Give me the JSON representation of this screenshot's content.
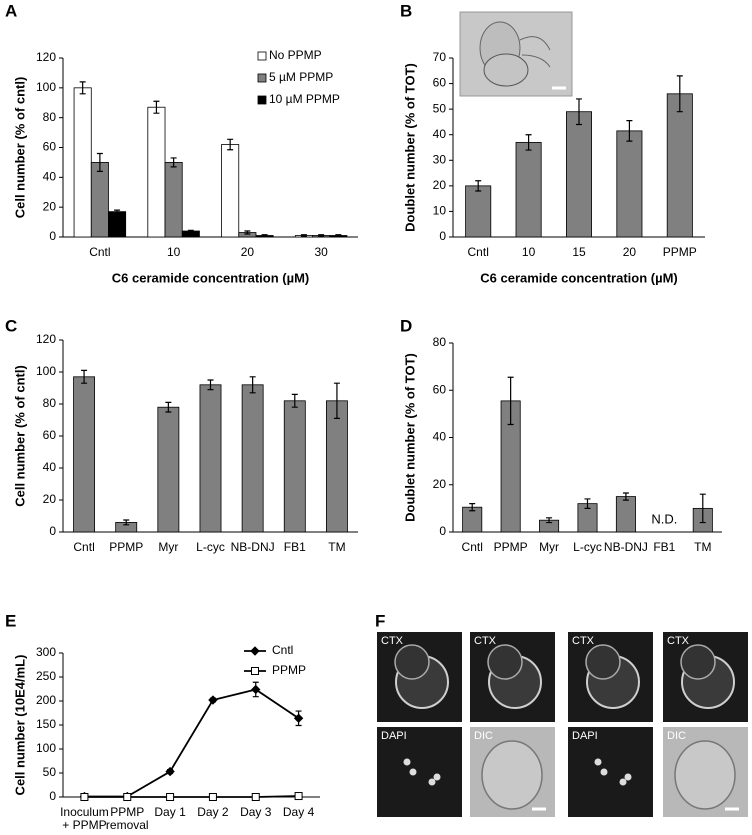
{
  "chart_data": [
    {
      "panel": "A",
      "type": "bar",
      "categories": [
        "Cntl",
        "10",
        "20",
        "30"
      ],
      "series": [
        {
          "name": "No PPMP",
          "color": "#ffffff",
          "values": [
            100,
            87,
            62,
            1
          ],
          "errors": [
            4,
            4,
            3.5,
            0.5
          ]
        },
        {
          "name": "5 µM PPMP",
          "color": "#808080",
          "values": [
            50,
            50,
            3,
            1
          ],
          "errors": [
            6,
            3,
            1,
            0.5
          ]
        },
        {
          "name": "10 µM PPMP",
          "color": "#000000",
          "values": [
            17,
            4,
            1,
            1
          ],
          "errors": [
            1,
            0.5,
            0.5,
            0.5
          ]
        }
      ],
      "ylim": [
        0,
        120
      ],
      "yticks": [
        0,
        20,
        40,
        60,
        80,
        100,
        120
      ],
      "ylabel": "Cell number (% of cntl)",
      "xlabel": "C6 ceramide concentration (µM)",
      "legend": "top-right"
    },
    {
      "panel": "B",
      "type": "bar",
      "categories": [
        "Cntl",
        "10",
        "15",
        "20",
        "PPMP"
      ],
      "values": [
        20,
        37,
        49,
        41.5,
        56
      ],
      "errors": [
        2,
        3,
        5,
        4,
        7
      ],
      "color": "#808080",
      "ylim": [
        0,
        70
      ],
      "yticks": [
        0,
        10,
        20,
        30,
        40,
        50,
        60,
        70
      ],
      "ylabel": "Doublet number (% of TOT)",
      "xlabel": "C6 ceramide concentration (µM)"
    },
    {
      "panel": "C",
      "type": "bar",
      "categories": [
        "Cntl",
        "PPMP",
        "Myr",
        "L-cyc",
        "NB-DNJ",
        "FB1",
        "TM"
      ],
      "values": [
        97,
        6,
        78,
        92,
        92,
        82,
        82
      ],
      "errors": [
        4,
        1.5,
        3,
        3,
        5,
        4,
        11
      ],
      "color": "#808080",
      "ylim": [
        0,
        120
      ],
      "yticks": [
        0,
        20,
        40,
        60,
        80,
        100,
        120
      ],
      "ylabel": "Cell number (% of cntl)"
    },
    {
      "panel": "D",
      "type": "bar",
      "categories": [
        "Cntl",
        "PPMP",
        "Myr",
        "L-cyc",
        "NB-DNJ",
        "FB1",
        "TM"
      ],
      "values": [
        10.5,
        55.5,
        5,
        12,
        15,
        null,
        10
      ],
      "errors": [
        1.5,
        10,
        1,
        2,
        1.5,
        null,
        6
      ],
      "color": "#808080",
      "ylim": [
        0,
        80
      ],
      "yticks": [
        0,
        20,
        40,
        60,
        80
      ],
      "ylabel": "Doublet number (% of TOT)",
      "annotation": "N.D."
    },
    {
      "panel": "E",
      "type": "line",
      "categories": [
        "Inoculum\n+ PPMP",
        "PPMP\nremoval",
        "Day 1",
        "Day 2",
        "Day 3",
        "Day 4"
      ],
      "series": [
        {
          "name": "Cntl",
          "color": "#000000",
          "marker": "diamond",
          "marker_fill": "#000000",
          "values": [
            1,
            1,
            53,
            202,
            224,
            164
          ],
          "errors": [
            2,
            2,
            4,
            4,
            15,
            15
          ]
        },
        {
          "name": "PPMP",
          "color": "#000000",
          "marker": "square",
          "marker_fill": "#ffffff",
          "values": [
            0,
            0,
            0,
            0,
            0,
            2
          ]
        }
      ],
      "ylim": [
        0,
        300
      ],
      "yticks": [
        0,
        50,
        100,
        150,
        200,
        250,
        300
      ],
      "ylabel": "Cell number (10E4/mL)",
      "legend": "top-right"
    }
  ],
  "micrographs": {
    "panel": "F",
    "tiles": [
      "CTX",
      "CTX",
      "CTX",
      "CTX",
      "DAPI",
      "DIC",
      "DAPI",
      "DIC"
    ]
  }
}
